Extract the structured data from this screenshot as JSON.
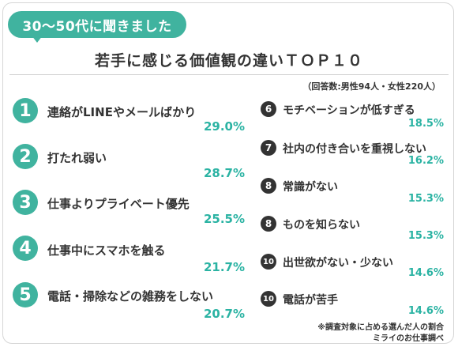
{
  "header": {
    "badge_text": "30〜50代に聞きました",
    "title": "若手に感じる価値観の違いＴＯＰ１０"
  },
  "sample_note": "（回答数:男性94人・女性220人）",
  "left_items": [
    {
      "rank": "1",
      "label": "連絡がLINEやメールばかり",
      "percent": "29.0%"
    },
    {
      "rank": "2",
      "label": "打たれ弱い",
      "percent": "28.7%"
    },
    {
      "rank": "3",
      "label": "仕事よりプライベート優先",
      "percent": "25.5%"
    },
    {
      "rank": "4",
      "label": "仕事中にスマホを触る",
      "percent": "21.7%"
    },
    {
      "rank": "5",
      "label": "電話・掃除などの雑務をしない",
      "percent": "20.7%"
    }
  ],
  "right_items": [
    {
      "rank": "6",
      "label": "モチベーションが低すぎる",
      "percent": "18.5%"
    },
    {
      "rank": "7",
      "label": "社内の付き合いを重視しない",
      "percent": "16.2%"
    },
    {
      "rank": "8",
      "label": "常識がない",
      "percent": "15.3%"
    },
    {
      "rank": "8",
      "label": "ものを知らない",
      "percent": "15.3%"
    },
    {
      "rank": "10",
      "label": "出世欲がない・少ない",
      "percent": "14.6%"
    },
    {
      "rank": "10",
      "label": "電話が苦手",
      "percent": "14.6%"
    }
  ],
  "footer": {
    "note1": "※調査対象に占める選んだ人の割合",
    "note2": "ミライのお仕事調べ"
  },
  "colors": {
    "accent": "#40b39f",
    "percent_text": "#2bb3a3",
    "dark_badge": "#333333"
  }
}
